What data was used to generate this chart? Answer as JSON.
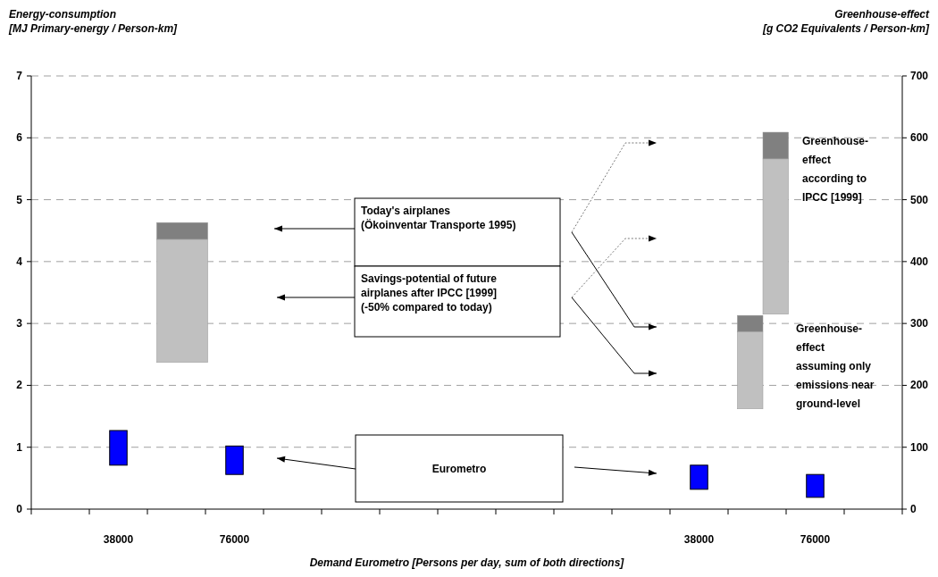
{
  "chart_data": {
    "type": "bar",
    "ylabel": "Energy-consumption\n[MJ Primary-energy / Person-km]",
    "y2label": "Greenhouse-effect\n[g CO2 Equivalents / Person-km]",
    "xlabel": "Demand Eurometro [Persons per day, sum of both directions]",
    "categories": [
      null,
      "38000",
      null,
      "76000",
      null,
      null,
      null,
      null,
      null,
      null,
      null,
      "38000",
      null,
      "76000",
      null
    ],
    "ylim": [
      0,
      7
    ],
    "yticks": [
      0,
      1,
      2,
      3,
      4,
      5,
      6,
      7
    ],
    "y2lim": [
      0,
      700
    ],
    "y2ticks": [
      0,
      100,
      200,
      300,
      400,
      500,
      600,
      700
    ],
    "grid": "y",
    "series": [
      {
        "color": "#0000ff",
        "axis": "y",
        "values": [
          null,
          0.56,
          null,
          0.46,
          null,
          null,
          null,
          null,
          null,
          null,
          null,
          null,
          null,
          null,
          null
        ],
        "base": [
          null,
          0.71,
          null,
          0.56,
          null,
          null,
          null,
          null,
          null,
          null,
          null,
          null,
          null,
          null,
          null
        ]
      },
      {
        "color": "#c0c0c0",
        "axis": "y",
        "values": [
          null,
          null,
          1.99,
          null,
          null,
          null,
          null,
          null,
          null,
          null,
          null,
          null,
          null,
          null,
          null
        ],
        "base": [
          null,
          null,
          2.37,
          null,
          null,
          null,
          null,
          null,
          null,
          null,
          null,
          null,
          null,
          null,
          null
        ]
      },
      {
        "color": "#808080",
        "axis": "y",
        "values": [
          null,
          null,
          0.27,
          null,
          null,
          null,
          null,
          null,
          null,
          null,
          null,
          null,
          null,
          null,
          null
        ],
        "base": [
          null,
          null,
          4.36,
          null,
          null,
          null,
          null,
          null,
          null,
          null,
          null,
          null,
          null,
          null,
          null
        ]
      },
      {
        "color": "#0000ff",
        "axis": "y2",
        "values": [
          null,
          null,
          null,
          null,
          null,
          null,
          null,
          null,
          null,
          null,
          null,
          39,
          null,
          37,
          null
        ],
        "base": [
          null,
          null,
          null,
          null,
          null,
          null,
          null,
          null,
          null,
          null,
          null,
          32,
          null,
          19,
          null
        ]
      },
      {
        "color": "#c0c0c0",
        "axis": "y2",
        "values": [
          null,
          null,
          null,
          null,
          null,
          null,
          null,
          null,
          null,
          null,
          null,
          null,
          125,
          null,
          null
        ],
        "base": [
          null,
          null,
          null,
          null,
          null,
          null,
          null,
          null,
          null,
          null,
          null,
          null,
          162,
          null,
          null
        ]
      },
      {
        "color": "#808080",
        "axis": "y2",
        "values": [
          null,
          null,
          null,
          null,
          null,
          null,
          null,
          null,
          null,
          null,
          null,
          null,
          26,
          null,
          null
        ],
        "base": [
          null,
          null,
          null,
          null,
          null,
          null,
          null,
          null,
          null,
          null,
          null,
          null,
          287,
          null,
          null
        ]
      },
      {
        "color": "#c0c0c0",
        "axis": "y2",
        "values": [
          null,
          null,
          null,
          null,
          null,
          null,
          null,
          null,
          null,
          null,
          null,
          null,
          251,
          null,
          null
        ],
        "base": [
          null,
          null,
          null,
          null,
          null,
          null,
          null,
          null,
          null,
          null,
          null,
          null,
          315,
          null,
          null
        ]
      },
      {
        "color": "#808080",
        "axis": "y2",
        "values": [
          null,
          null,
          null,
          null,
          null,
          null,
          null,
          null,
          null,
          null,
          null,
          null,
          43,
          null,
          null
        ],
        "base": [
          null,
          null,
          null,
          null,
          null,
          null,
          null,
          null,
          null,
          null,
          null,
          null,
          566,
          null,
          null
        ]
      }
    ],
    "annotations": [
      "Today's airplanes\n(Ökoinventar Transporte 1995)",
      "Savings-potential of future\nairplanes after IPCC [1999]\n(-50% compared to today)",
      "Eurometro",
      "Greenhouse-\neffect\naccording to\nIPCC [1999]",
      "Greenhouse-\neffect\nassuming only\nemissions near\nground-level"
    ]
  }
}
